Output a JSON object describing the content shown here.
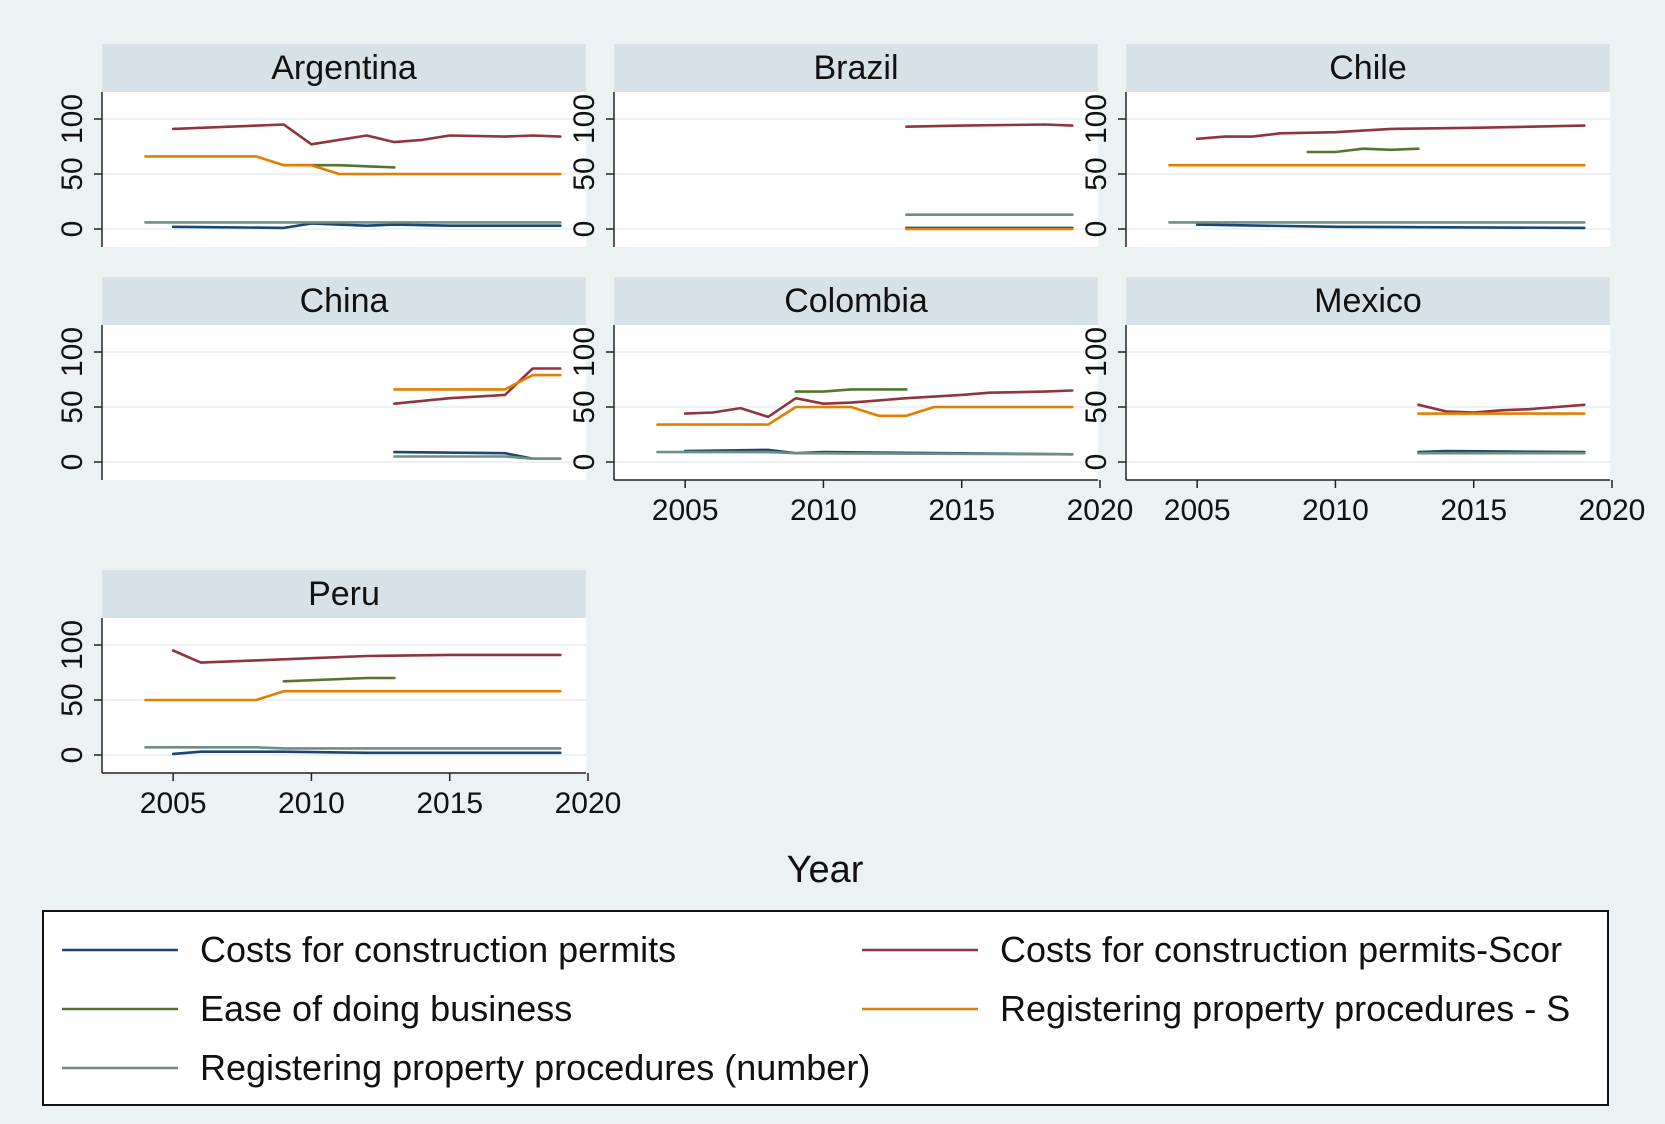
{
  "chart_data": {
    "type": "line",
    "layout": "small-multiples",
    "xlabel": "Year",
    "ylabel": "",
    "xlim": [
      2004,
      2020
    ],
    "ylim": [
      0,
      100
    ],
    "x_ticks": [
      2005,
      2010,
      2015,
      2020
    ],
    "y_ticks": [
      0,
      50,
      100
    ],
    "grid": true,
    "legend_position": "bottom",
    "legend": [
      {
        "label": "Costs for construction permits",
        "color": "#1a476f"
      },
      {
        "label": "Costs for construction permits-Scor",
        "color": "#90353b"
      },
      {
        "label": "Ease of doing business",
        "color": "#55752f"
      },
      {
        "label": "Registering property procedures - S",
        "color": "#e37e00"
      },
      {
        "label": "Registering property procedures (number)",
        "color": "#6e8e84"
      }
    ],
    "panels": [
      {
        "title": "Argentina",
        "series": [
          {
            "color": "#1a476f",
            "points": [
              [
                2005,
                2
              ],
              [
                2009,
                1
              ],
              [
                2010,
                5
              ],
              [
                2012,
                3
              ],
              [
                2013,
                4
              ],
              [
                2015,
                3
              ],
              [
                2019,
                3
              ]
            ]
          },
          {
            "color": "#90353b",
            "points": [
              [
                2005,
                91
              ],
              [
                2009,
                95
              ],
              [
                2010,
                77
              ],
              [
                2012,
                85
              ],
              [
                2013,
                79
              ],
              [
                2014,
                81
              ],
              [
                2015,
                85
              ],
              [
                2017,
                84
              ],
              [
                2018,
                85
              ],
              [
                2019,
                84
              ]
            ]
          },
          {
            "color": "#55752f",
            "points": [
              [
                2009,
                58
              ],
              [
                2011,
                58
              ],
              [
                2013,
                56
              ]
            ]
          },
          {
            "color": "#e37e00",
            "points": [
              [
                2004,
                66
              ],
              [
                2008,
                66
              ],
              [
                2009,
                58
              ],
              [
                2010,
                58
              ],
              [
                2011,
                50
              ],
              [
                2019,
                50
              ]
            ]
          },
          {
            "color": "#6e8e84",
            "points": [
              [
                2004,
                6
              ],
              [
                2019,
                6
              ]
            ]
          }
        ]
      },
      {
        "title": "Brazil",
        "series": [
          {
            "color": "#1a476f",
            "points": [
              [
                2013,
                1
              ],
              [
                2019,
                1
              ]
            ]
          },
          {
            "color": "#90353b",
            "points": [
              [
                2013,
                93
              ],
              [
                2015,
                94
              ],
              [
                2018,
                95
              ],
              [
                2019,
                94
              ]
            ]
          },
          {
            "color": "#e37e00",
            "points": [
              [
                2013,
                0
              ],
              [
                2019,
                0
              ]
            ]
          },
          {
            "color": "#6e8e84",
            "points": [
              [
                2013,
                13
              ],
              [
                2019,
                13
              ]
            ]
          }
        ]
      },
      {
        "title": "Chile",
        "series": [
          {
            "color": "#1a476f",
            "points": [
              [
                2005,
                4
              ],
              [
                2010,
                2
              ],
              [
                2019,
                1
              ]
            ]
          },
          {
            "color": "#90353b",
            "points": [
              [
                2005,
                82
              ],
              [
                2006,
                84
              ],
              [
                2007,
                84
              ],
              [
                2008,
                87
              ],
              [
                2010,
                88
              ],
              [
                2012,
                91
              ],
              [
                2015,
                92
              ],
              [
                2019,
                94
              ]
            ]
          },
          {
            "color": "#55752f",
            "points": [
              [
                2009,
                70
              ],
              [
                2010,
                70
              ],
              [
                2011,
                73
              ],
              [
                2012,
                72
              ],
              [
                2013,
                73
              ]
            ]
          },
          {
            "color": "#e37e00",
            "points": [
              [
                2004,
                58
              ],
              [
                2019,
                58
              ]
            ]
          },
          {
            "color": "#6e8e84",
            "points": [
              [
                2004,
                6
              ],
              [
                2019,
                6
              ]
            ]
          }
        ]
      },
      {
        "title": "China",
        "series": [
          {
            "color": "#1a476f",
            "points": [
              [
                2013,
                9
              ],
              [
                2017,
                8
              ],
              [
                2018,
                3
              ],
              [
                2019,
                3
              ]
            ]
          },
          {
            "color": "#90353b",
            "points": [
              [
                2013,
                53
              ],
              [
                2015,
                58
              ],
              [
                2017,
                61
              ],
              [
                2018,
                85
              ],
              [
                2019,
                85
              ]
            ]
          },
          {
            "color": "#e37e00",
            "points": [
              [
                2013,
                66
              ],
              [
                2017,
                66
              ],
              [
                2018,
                79
              ],
              [
                2019,
                79
              ]
            ]
          },
          {
            "color": "#6e8e84",
            "points": [
              [
                2013,
                5
              ],
              [
                2017,
                5
              ],
              [
                2018,
                3
              ],
              [
                2019,
                3
              ]
            ]
          }
        ]
      },
      {
        "title": "Colombia",
        "series": [
          {
            "color": "#1a476f",
            "points": [
              [
                2005,
                10
              ],
              [
                2008,
                11
              ],
              [
                2009,
                8
              ],
              [
                2010,
                9
              ],
              [
                2019,
                7
              ]
            ]
          },
          {
            "color": "#90353b",
            "points": [
              [
                2005,
                44
              ],
              [
                2006,
                45
              ],
              [
                2007,
                49
              ],
              [
                2008,
                41
              ],
              [
                2009,
                58
              ],
              [
                2010,
                53
              ],
              [
                2011,
                54
              ],
              [
                2012,
                56
              ],
              [
                2013,
                58
              ],
              [
                2015,
                61
              ],
              [
                2016,
                63
              ],
              [
                2018,
                64
              ],
              [
                2019,
                65
              ]
            ]
          },
          {
            "color": "#55752f",
            "points": [
              [
                2009,
                64
              ],
              [
                2010,
                64
              ],
              [
                2011,
                66
              ],
              [
                2013,
                66
              ]
            ]
          },
          {
            "color": "#e37e00",
            "points": [
              [
                2004,
                34
              ],
              [
                2008,
                34
              ],
              [
                2009,
                50
              ],
              [
                2011,
                50
              ],
              [
                2012,
                42
              ],
              [
                2013,
                42
              ],
              [
                2014,
                50
              ],
              [
                2019,
                50
              ]
            ]
          },
          {
            "color": "#6e8e84",
            "points": [
              [
                2004,
                9
              ],
              [
                2008,
                9
              ],
              [
                2009,
                8
              ],
              [
                2019,
                7
              ]
            ]
          }
        ]
      },
      {
        "title": "Mexico",
        "series": [
          {
            "color": "#1a476f",
            "points": [
              [
                2013,
                9
              ],
              [
                2014,
                10
              ],
              [
                2019,
                9
              ]
            ]
          },
          {
            "color": "#90353b",
            "points": [
              [
                2013,
                52
              ],
              [
                2014,
                46
              ],
              [
                2015,
                45
              ],
              [
                2016,
                47
              ],
              [
                2017,
                48
              ],
              [
                2018,
                50
              ],
              [
                2019,
                52
              ]
            ]
          },
          {
            "color": "#e37e00",
            "points": [
              [
                2013,
                44
              ],
              [
                2019,
                44
              ]
            ]
          },
          {
            "color": "#6e8e84",
            "points": [
              [
                2013,
                8
              ],
              [
                2019,
                8
              ]
            ]
          }
        ]
      },
      {
        "title": "Peru",
        "series": [
          {
            "color": "#1a476f",
            "points": [
              [
                2005,
                1
              ],
              [
                2006,
                3
              ],
              [
                2009,
                3
              ],
              [
                2012,
                2
              ],
              [
                2019,
                2
              ]
            ]
          },
          {
            "color": "#90353b",
            "points": [
              [
                2005,
                95
              ],
              [
                2006,
                84
              ],
              [
                2008,
                86
              ],
              [
                2010,
                88
              ],
              [
                2012,
                90
              ],
              [
                2015,
                91
              ],
              [
                2019,
                91
              ]
            ]
          },
          {
            "color": "#55752f",
            "points": [
              [
                2009,
                67
              ],
              [
                2012,
                70
              ],
              [
                2013,
                70
              ]
            ]
          },
          {
            "color": "#e37e00",
            "points": [
              [
                2004,
                50
              ],
              [
                2008,
                50
              ],
              [
                2009,
                58
              ],
              [
                2019,
                58
              ]
            ]
          },
          {
            "color": "#6e8e84",
            "points": [
              [
                2004,
                7
              ],
              [
                2008,
                7
              ],
              [
                2009,
                6
              ],
              [
                2019,
                6
              ]
            ]
          }
        ]
      }
    ]
  }
}
